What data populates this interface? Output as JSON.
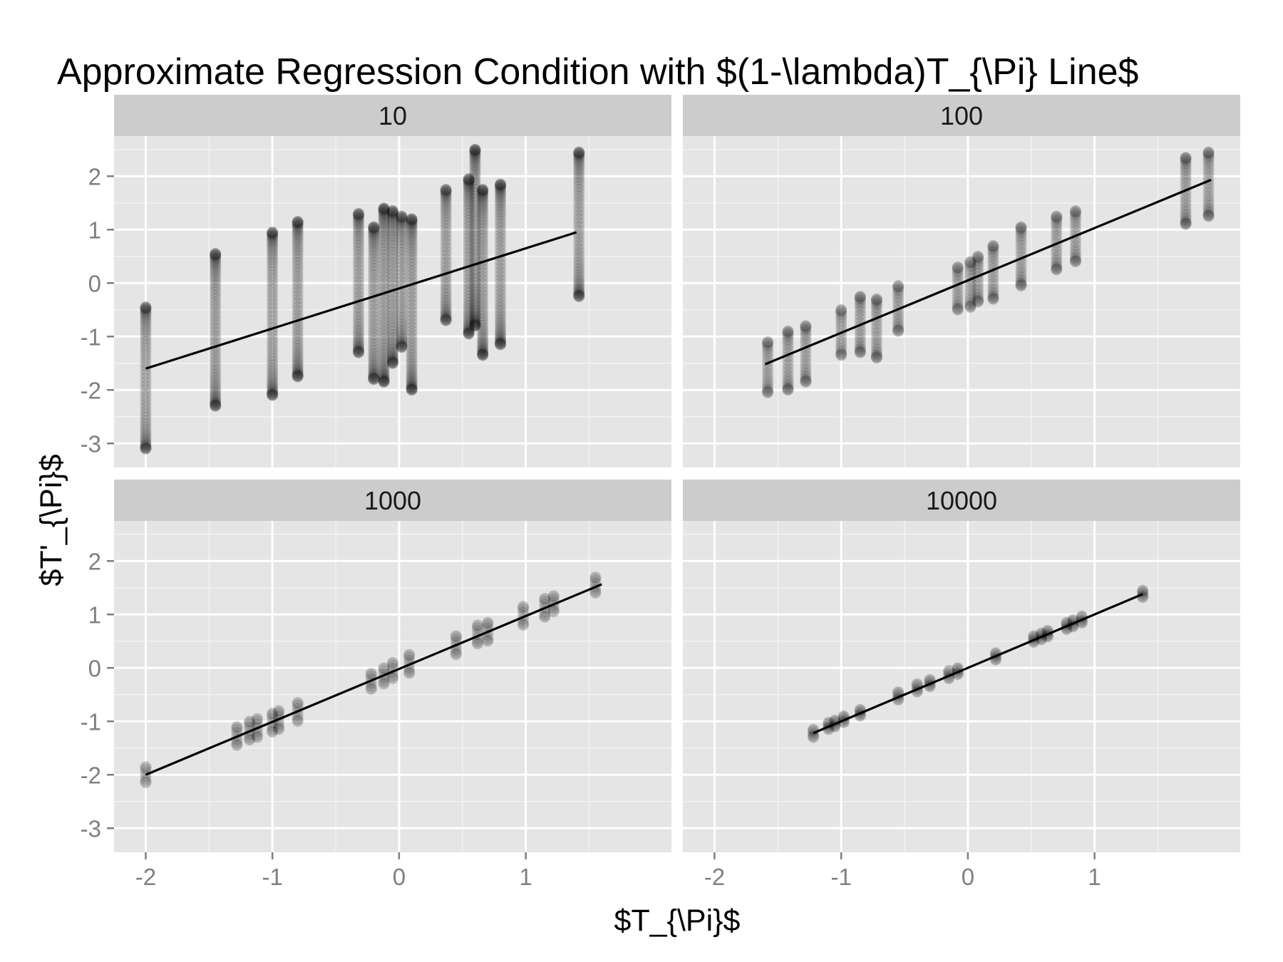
{
  "chart_data": {
    "type": "scatter",
    "title": "Approximate Regression Condition with $(1-\\lambda)T_{\\Pi} Line$",
    "xlabel": "$T_{\\Pi}$",
    "ylabel": "$T'_{\\Pi}$",
    "xlim": [
      -2.25,
      2.15
    ],
    "ylim": [
      -3.45,
      2.75
    ],
    "x_ticks": [
      -2,
      -1,
      0,
      1
    ],
    "x_tick_labels": [
      "-2",
      "-1",
      "0",
      "1"
    ],
    "y_ticks": [
      2,
      1,
      0,
      -1,
      -2,
      -3
    ],
    "y_tick_labels": [
      "2",
      "1",
      "0",
      "-1",
      "-2",
      "-3"
    ],
    "grid": true,
    "legend": "none",
    "colors": {
      "panel_bg": "#e5e5e5",
      "strip_bg": "#cccccc",
      "grid_major": "#ffffff",
      "point": "#000000",
      "line": "#000000",
      "tick": "#7f7f7f"
    },
    "point_alpha": 0.12,
    "panels": [
      {
        "label": "10",
        "slope": 0.75,
        "intercept": -0.1,
        "line_x": [
          -2.0,
          1.4
        ],
        "points": [
          {
            "x": -2.0,
            "y_min": -3.1,
            "y_max": -0.45
          },
          {
            "x": -1.45,
            "y_min": -2.3,
            "y_max": 0.55
          },
          {
            "x": -1.0,
            "y_min": -2.1,
            "y_max": 0.95
          },
          {
            "x": -0.8,
            "y_min": -1.75,
            "y_max": 1.15
          },
          {
            "x": -0.32,
            "y_min": -1.3,
            "y_max": 1.3
          },
          {
            "x": -0.2,
            "y_min": -1.8,
            "y_max": 1.05
          },
          {
            "x": -0.12,
            "y_min": -1.85,
            "y_max": 1.4
          },
          {
            "x": -0.05,
            "y_min": -1.5,
            "y_max": 1.35
          },
          {
            "x": 0.02,
            "y_min": -1.2,
            "y_max": 1.25
          },
          {
            "x": 0.1,
            "y_min": -2.0,
            "y_max": 1.2
          },
          {
            "x": 0.37,
            "y_min": -0.7,
            "y_max": 1.75
          },
          {
            "x": 0.55,
            "y_min": -0.95,
            "y_max": 1.95
          },
          {
            "x": 0.6,
            "y_min": -0.8,
            "y_max": 2.5
          },
          {
            "x": 0.66,
            "y_min": -1.35,
            "y_max": 1.75
          },
          {
            "x": 0.8,
            "y_min": -1.15,
            "y_max": 1.85
          },
          {
            "x": 1.42,
            "y_min": -0.25,
            "y_max": 2.45
          }
        ]
      },
      {
        "label": "100",
        "slope": 0.98,
        "intercept": 0.05,
        "line_x": [
          -1.6,
          1.92
        ],
        "points": [
          {
            "x": -1.58,
            "y_min": -2.05,
            "y_max": -1.1
          },
          {
            "x": -1.42,
            "y_min": -2.0,
            "y_max": -0.9
          },
          {
            "x": -1.28,
            "y_min": -1.85,
            "y_max": -0.8
          },
          {
            "x": -1.0,
            "y_min": -1.35,
            "y_max": -0.5
          },
          {
            "x": -0.85,
            "y_min": -1.3,
            "y_max": -0.25
          },
          {
            "x": -0.72,
            "y_min": -1.4,
            "y_max": -0.3
          },
          {
            "x": -0.55,
            "y_min": -0.9,
            "y_max": -0.05
          },
          {
            "x": -0.08,
            "y_min": -0.5,
            "y_max": 0.3
          },
          {
            "x": 0.02,
            "y_min": -0.45,
            "y_max": 0.4
          },
          {
            "x": 0.08,
            "y_min": -0.35,
            "y_max": 0.5
          },
          {
            "x": 0.2,
            "y_min": -0.3,
            "y_max": 0.7
          },
          {
            "x": 0.42,
            "y_min": -0.05,
            "y_max": 1.05
          },
          {
            "x": 0.7,
            "y_min": 0.25,
            "y_max": 1.25
          },
          {
            "x": 0.85,
            "y_min": 0.4,
            "y_max": 1.35
          },
          {
            "x": 1.72,
            "y_min": 1.1,
            "y_max": 2.35
          },
          {
            "x": 1.9,
            "y_min": 1.25,
            "y_max": 2.45
          }
        ]
      },
      {
        "label": "1000",
        "slope": 0.99,
        "intercept": -0.02,
        "line_x": [
          -2.0,
          1.6
        ],
        "points": [
          {
            "x": -2.0,
            "y_min": -2.15,
            "y_max": -1.85
          },
          {
            "x": -1.28,
            "y_min": -1.45,
            "y_max": -1.1
          },
          {
            "x": -1.18,
            "y_min": -1.35,
            "y_max": -1.0
          },
          {
            "x": -1.12,
            "y_min": -1.3,
            "y_max": -0.95
          },
          {
            "x": -1.0,
            "y_min": -1.2,
            "y_max": -0.85
          },
          {
            "x": -0.95,
            "y_min": -1.15,
            "y_max": -0.8
          },
          {
            "x": -0.8,
            "y_min": -1.0,
            "y_max": -0.65
          },
          {
            "x": -0.22,
            "y_min": -0.4,
            "y_max": -0.1
          },
          {
            "x": -0.12,
            "y_min": -0.3,
            "y_max": 0.0
          },
          {
            "x": -0.05,
            "y_min": -0.2,
            "y_max": 0.1
          },
          {
            "x": 0.08,
            "y_min": -0.1,
            "y_max": 0.25
          },
          {
            "x": 0.45,
            "y_min": 0.25,
            "y_max": 0.6
          },
          {
            "x": 0.62,
            "y_min": 0.45,
            "y_max": 0.8
          },
          {
            "x": 0.7,
            "y_min": 0.5,
            "y_max": 0.85
          },
          {
            "x": 0.98,
            "y_min": 0.8,
            "y_max": 1.15
          },
          {
            "x": 1.15,
            "y_min": 0.95,
            "y_max": 1.3
          },
          {
            "x": 1.22,
            "y_min": 1.05,
            "y_max": 1.35
          },
          {
            "x": 1.55,
            "y_min": 1.4,
            "y_max": 1.7
          }
        ]
      },
      {
        "label": "10000",
        "slope": 1.0,
        "intercept": 0.0,
        "line_x": [
          -1.22,
          1.38
        ],
        "points": [
          {
            "x": -1.22,
            "y_min": -1.3,
            "y_max": -1.15
          },
          {
            "x": -1.1,
            "y_min": -1.15,
            "y_max": -1.02
          },
          {
            "x": -1.05,
            "y_min": -1.1,
            "y_max": -0.98
          },
          {
            "x": -0.98,
            "y_min": -1.02,
            "y_max": -0.9
          },
          {
            "x": -0.85,
            "y_min": -0.9,
            "y_max": -0.78
          },
          {
            "x": -0.55,
            "y_min": -0.6,
            "y_max": -0.45
          },
          {
            "x": -0.4,
            "y_min": -0.45,
            "y_max": -0.3
          },
          {
            "x": -0.3,
            "y_min": -0.35,
            "y_max": -0.22
          },
          {
            "x": -0.15,
            "y_min": -0.2,
            "y_max": -0.05
          },
          {
            "x": -0.08,
            "y_min": -0.12,
            "y_max": 0.0
          },
          {
            "x": 0.22,
            "y_min": 0.15,
            "y_max": 0.28
          },
          {
            "x": 0.52,
            "y_min": 0.48,
            "y_max": 0.6
          },
          {
            "x": 0.58,
            "y_min": 0.53,
            "y_max": 0.65
          },
          {
            "x": 0.63,
            "y_min": 0.58,
            "y_max": 0.7
          },
          {
            "x": 0.78,
            "y_min": 0.72,
            "y_max": 0.85
          },
          {
            "x": 0.83,
            "y_min": 0.77,
            "y_max": 0.9
          },
          {
            "x": 0.9,
            "y_min": 0.84,
            "y_max": 0.97
          },
          {
            "x": 1.38,
            "y_min": 1.32,
            "y_max": 1.45
          }
        ]
      }
    ]
  }
}
